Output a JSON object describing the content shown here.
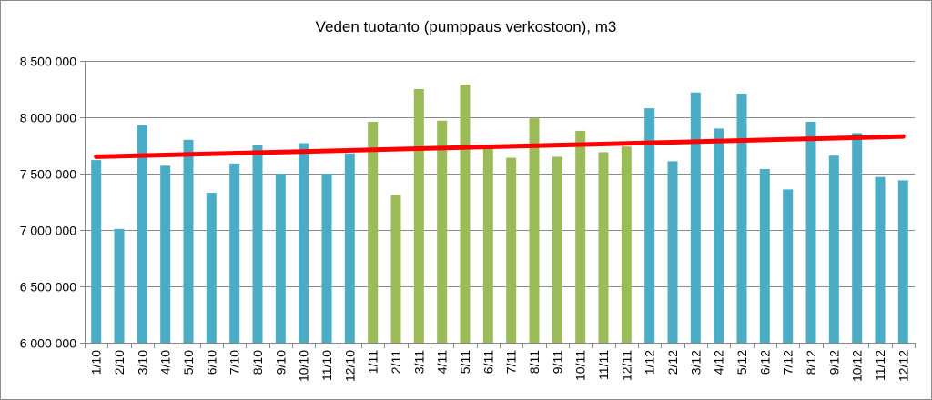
{
  "chart_data": {
    "type": "bar",
    "title": "Veden tuotanto (pumppaus verkostoon), m3",
    "categories": [
      "1/10",
      "2/10",
      "3/10",
      "4/10",
      "5/10",
      "6/10",
      "7/10",
      "8/10",
      "9/10",
      "10/10",
      "11/10",
      "12/10",
      "1/11",
      "2/11",
      "3/11",
      "4/11",
      "5/11",
      "6/11",
      "7/11",
      "8/11",
      "9/11",
      "10/11",
      "11/11",
      "12/11",
      "1/12",
      "2/12",
      "3/12",
      "4/12",
      "5/12",
      "6/12",
      "7/12",
      "8/12",
      "9/12",
      "10/12",
      "11/12",
      "12/12"
    ],
    "values": [
      7620000,
      7010000,
      7930000,
      7570000,
      7800000,
      7330000,
      7590000,
      7750000,
      7500000,
      7770000,
      7500000,
      7680000,
      7960000,
      7310000,
      8250000,
      7970000,
      8290000,
      7720000,
      7640000,
      7990000,
      7650000,
      7880000,
      7690000,
      7740000,
      8080000,
      7610000,
      8220000,
      7900000,
      8210000,
      7540000,
      7360000,
      7960000,
      7660000,
      7860000,
      7470000,
      7440000
    ],
    "bar_colors_by_year": {
      "2010": "#4bacc6",
      "2011": "#9bbb59",
      "2012": "#4bacc6"
    },
    "trendline": {
      "color": "#ff0000",
      "start": 7650000,
      "end": 7830000
    },
    "ylim": [
      6000000,
      8500000
    ],
    "yticks": [
      6000000,
      6500000,
      7000000,
      7500000,
      8000000,
      8500000
    ],
    "ytick_labels": [
      "6 000 000",
      "6 500 000",
      "7 000 000",
      "7 500 000",
      "8 000 000",
      "8 500 000"
    ],
    "grid": true,
    "legend": "none",
    "xlabel": "",
    "ylabel": ""
  },
  "colors": {
    "gridline": "#8c8c8c",
    "axis": "#868686",
    "text": "#000000"
  }
}
